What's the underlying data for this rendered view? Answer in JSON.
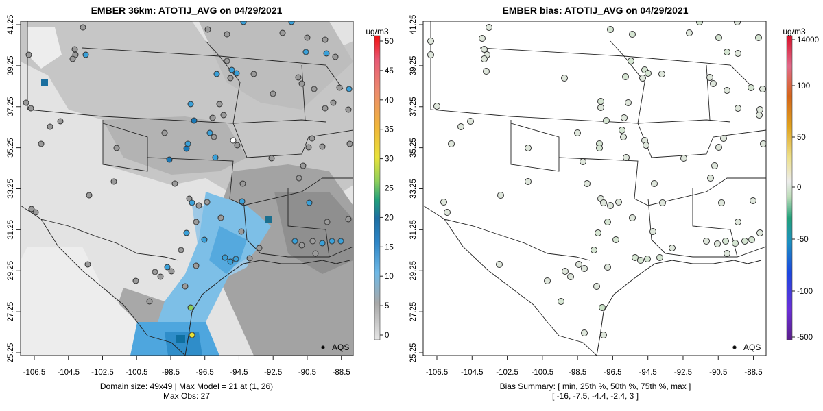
{
  "left_panel": {
    "title": "EMBER 36km: ATOTIJ_AVG on 04/29/2021",
    "footer_line1": "Domain size: 49x49 | Max Model = 21 at (1, 26)",
    "footer_line2": "Max Obs: 27",
    "legend_label": "AQS",
    "colorbar_unit": "ug/m3",
    "colorbar_ticks": [
      "0",
      "5",
      "10",
      "15",
      "20",
      "25",
      "30",
      "35",
      "40",
      "45",
      "50"
    ]
  },
  "right_panel": {
    "title": "EMBER bias: ATOTIJ_AVG on 04/29/2021",
    "footer_line1": "Bias Summary: [ min, 25th %, 50th %, 75th %, max ]",
    "footer_line2": "[ -16,  -7.5,  -4.4,  -2.4,  3 ]",
    "legend_label": "AQS",
    "colorbar_unit": "ug/m3",
    "colorbar_ticks": [
      "-500",
      "-100",
      "-50",
      "0",
      "50",
      "100",
      "14000"
    ]
  },
  "x_ticks": [
    "-106.5",
    "-104.5",
    "-102.5",
    "-100.5",
    "-98.5",
    "-96.5",
    "-94.5",
    "-92.5",
    "-90.5",
    "-88.5"
  ],
  "y_ticks": [
    "25.25",
    "27.25",
    "29.25",
    "31.25",
    "33.25",
    "35.25",
    "37.25",
    "39.25",
    "41.25"
  ],
  "colors": {
    "aqs_blue": "#3aa0d8",
    "aqs_grey": "#9a9a9a",
    "bias_light": "#dfe7dc",
    "model_blue": "#5ab4e8"
  }
}
